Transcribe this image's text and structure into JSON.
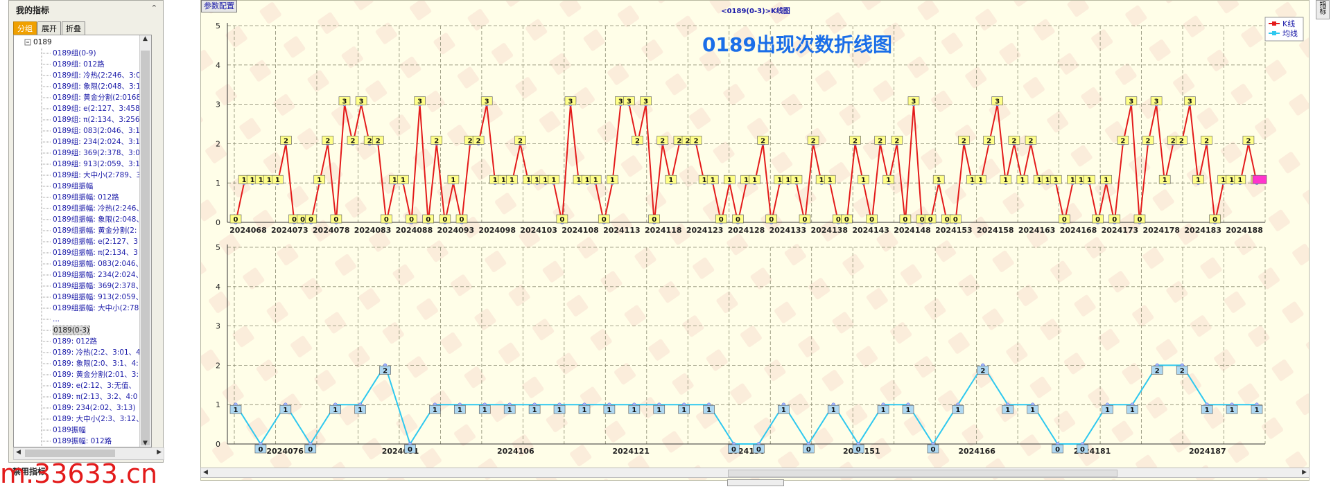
{
  "sidebar": {
    "title": "我的指标",
    "collapse_icon": "double-chevron-up",
    "tabs": [
      "分组",
      "展开",
      "折叠"
    ],
    "active_tab": 0,
    "tree_items": [
      {
        "label": "0189",
        "root": true
      },
      {
        "label": "0189组(0-9)"
      },
      {
        "label": "0189组: 012路"
      },
      {
        "label": "0189组: 冷热(2:246、3:0"
      },
      {
        "label": "0189组: 象限(2:048、3:1"
      },
      {
        "label": "0189组: 黄金分割(2:0168"
      },
      {
        "label": "0189组: e(2:127、3:458"
      },
      {
        "label": "0189组: π(2:134、3:256"
      },
      {
        "label": "0189组: 083(2:046、3:12"
      },
      {
        "label": "0189组: 234(2:024、3:13"
      },
      {
        "label": "0189组: 369(2:378、3:04"
      },
      {
        "label": "0189组: 913(2:059、3:12"
      },
      {
        "label": "0189组: 大中小(2:789、3"
      },
      {
        "label": "0189组振幅"
      },
      {
        "label": "0189组振幅: 012路"
      },
      {
        "label": "0189组振幅: 冷热(2:246、"
      },
      {
        "label": "0189组振幅: 象限(2:048、"
      },
      {
        "label": "0189组振幅: 黄金分割(2:"
      },
      {
        "label": "0189组振幅: e(2:127、3"
      },
      {
        "label": "0189组振幅: π(2:134、3"
      },
      {
        "label": "0189组振幅: 083(2:046、"
      },
      {
        "label": "0189组振幅: 234(2:024、"
      },
      {
        "label": "0189组振幅: 369(2:378、"
      },
      {
        "label": "0189组振幅: 913(2:059、"
      },
      {
        "label": "0189组振幅: 大中小(2:78"
      },
      {
        "label": "..."
      },
      {
        "label": "0189(0-3)",
        "selected": true
      },
      {
        "label": "0189: 012路"
      },
      {
        "label": "0189: 冷热(2:2、3:01、4"
      },
      {
        "label": "0189: 象限(2:0、3:1、4:"
      },
      {
        "label": "0189: 黄金分割(2:01、3:"
      },
      {
        "label": "0189: e(2:12、3:无值、"
      },
      {
        "label": "0189: π(2:13、3:2、4:0"
      },
      {
        "label": "0189: 234(2:02、3:13)"
      },
      {
        "label": "0189: 大中小(2:3、3:12、"
      },
      {
        "label": "0189振幅"
      },
      {
        "label": "0189振幅: 012路"
      }
    ],
    "bottom_panel": "禁用指标",
    "watermark_text": "m.33633.cn"
  },
  "toolbar": {
    "param_button": "参数配置",
    "chart_window_title": "<0189(0-3)>K线图",
    "right_tab": "指标"
  },
  "colors": {
    "k_line": "#e31a1a",
    "avg_line": "#2ec8ef",
    "label_fill_k": "#ffff88",
    "label_fill_avg": "#aed8f2",
    "grid": "#8a8a70",
    "title": "#1a6ee8",
    "panel_bg": "#fffee8"
  },
  "chart_data": [
    {
      "type": "line",
      "title": "0189出现次数折线图",
      "ylim": [
        0,
        5
      ],
      "yticks": [
        0,
        1,
        2,
        3,
        4,
        5
      ],
      "legend": {
        "position": "top-right",
        "entries": [
          "K线",
          "均线"
        ]
      },
      "x_labels": [
        "2024068",
        "2024073",
        "2024078",
        "2024083",
        "2024088",
        "2024093",
        "2024098",
        "2024103",
        "2024108",
        "2024113",
        "2024118",
        "2024123",
        "2024128",
        "2024133",
        "2024138",
        "2024143",
        "2024148",
        "2024153",
        "2024158",
        "2024163",
        "2024168",
        "2024173",
        "2024178",
        "2024183",
        "2024188"
      ],
      "series": [
        {
          "name": "K线",
          "values": [
            0,
            1,
            1,
            1,
            1,
            1,
            2,
            0,
            0,
            0,
            1,
            2,
            0,
            3,
            2,
            3,
            2,
            2,
            0,
            1,
            1,
            0,
            3,
            0,
            2,
            0,
            1,
            0,
            2,
            2,
            3,
            1,
            1,
            1,
            2,
            1,
            1,
            1,
            1,
            0,
            3,
            1,
            1,
            1,
            0,
            1,
            3,
            3,
            2,
            3,
            0,
            2,
            1,
            2,
            2,
            2,
            1,
            1,
            0,
            1,
            0,
            1,
            1,
            2,
            0,
            1,
            1,
            1,
            0,
            2,
            1,
            1,
            0,
            0,
            2,
            1,
            0,
            2,
            1,
            2,
            0,
            3,
            0,
            0,
            1,
            0,
            0,
            2,
            1,
            1,
            2,
            3,
            1,
            2,
            1,
            2,
            1,
            1,
            1,
            0,
            1,
            1,
            1,
            0,
            1,
            0,
            2,
            3,
            0,
            2,
            3,
            1,
            2,
            2,
            3,
            1,
            2,
            0,
            1,
            1,
            1,
            2,
            1
          ]
        }
      ]
    },
    {
      "type": "line",
      "ylim": [
        0,
        5
      ],
      "yticks": [
        0,
        1,
        2,
        3,
        4,
        5
      ],
      "x_labels": [
        "2024076",
        "2024091",
        "2024106",
        "2024121",
        "2024136",
        "2024151",
        "2024166",
        "2024181",
        "2024187"
      ],
      "series": [
        {
          "name": "均线",
          "values": [
            1,
            0,
            1,
            0,
            1,
            1,
            2,
            0,
            1,
            1,
            1,
            1,
            1,
            1,
            1,
            1,
            1,
            1,
            1,
            1,
            0,
            0,
            1,
            0,
            1,
            0,
            1,
            1,
            0,
            1,
            2,
            1,
            1,
            0,
            0,
            1,
            1,
            2,
            2,
            1,
            1,
            1
          ]
        }
      ]
    }
  ]
}
